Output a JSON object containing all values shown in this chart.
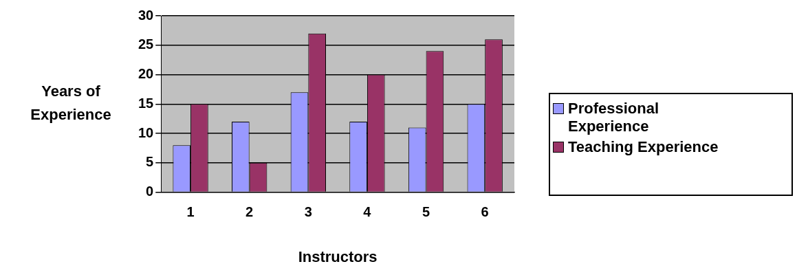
{
  "chart_data": {
    "type": "bar",
    "xlabel": "Instructors",
    "ylabel": "Years of Experience",
    "categories": [
      "1",
      "2",
      "3",
      "4",
      "5",
      "6"
    ],
    "series": [
      {
        "name": "Professional Experience",
        "color": "#9999ff",
        "values": [
          8,
          12,
          17,
          12,
          11,
          15
        ]
      },
      {
        "name": "Teaching Experience",
        "color": "#993366",
        "values": [
          15,
          5,
          27,
          20,
          24,
          26
        ]
      }
    ],
    "ylim": [
      0,
      30
    ],
    "yticks": [
      0,
      5,
      10,
      15,
      20,
      25,
      30
    ],
    "grid": "y",
    "legend": "right"
  }
}
